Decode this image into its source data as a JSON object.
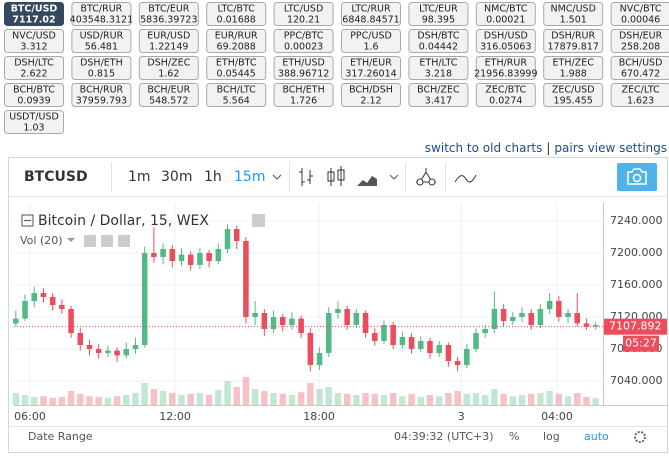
{
  "tickers": [
    {
      "pair": "BTC/USD",
      "price": "7117.02"
    },
    {
      "pair": "BTC/RUR",
      "price": "403548.3121"
    },
    {
      "pair": "BTC/EUR",
      "price": "5836.39723"
    },
    {
      "pair": "LTC/BTC",
      "price": "0.01688"
    },
    {
      "pair": "LTC/USD",
      "price": "120.21"
    },
    {
      "pair": "LTC/RUR",
      "price": "6848.84571"
    },
    {
      "pair": "LTC/EUR",
      "price": "98.395"
    },
    {
      "pair": "NMC/BTC",
      "price": "0.00021"
    },
    {
      "pair": "NMC/USD",
      "price": "1.501"
    },
    {
      "pair": "NVC/BTC",
      "price": "0.00046"
    },
    {
      "pair": "NVC/USD",
      "price": "3.312"
    },
    {
      "pair": "USD/RUR",
      "price": "56.481"
    },
    {
      "pair": "EUR/USD",
      "price": "1.22149"
    },
    {
      "pair": "EUR/RUR",
      "price": "69.2088"
    },
    {
      "pair": "PPC/BTC",
      "price": "0.00023"
    },
    {
      "pair": "PPC/USD",
      "price": "1.6"
    },
    {
      "pair": "DSH/BTC",
      "price": "0.04442"
    },
    {
      "pair": "DSH/USD",
      "price": "316.05063"
    },
    {
      "pair": "DSH/RUR",
      "price": "17879.817"
    },
    {
      "pair": "DSH/EUR",
      "price": "258.208"
    },
    {
      "pair": "DSH/LTC",
      "price": "2.622"
    },
    {
      "pair": "DSH/ETH",
      "price": "0.815"
    },
    {
      "pair": "DSH/ZEC",
      "price": "1.62"
    },
    {
      "pair": "ETH/BTC",
      "price": "0.05445"
    },
    {
      "pair": "ETH/USD",
      "price": "388.96712"
    },
    {
      "pair": "ETH/EUR",
      "price": "317.26014"
    },
    {
      "pair": "ETH/LTC",
      "price": "3.218"
    },
    {
      "pair": "ETH/RUR",
      "price": "21956.83999"
    },
    {
      "pair": "ETH/ZEC",
      "price": "1.988"
    },
    {
      "pair": "BCH/USD",
      "price": "670.472"
    },
    {
      "pair": "BCH/BTC",
      "price": "0.0939"
    },
    {
      "pair": "BCH/RUR",
      "price": "37959.793"
    },
    {
      "pair": "BCH/EUR",
      "price": "548.572"
    },
    {
      "pair": "BCH/LTC",
      "price": "5.564"
    },
    {
      "pair": "BCH/ETH",
      "price": "1.726"
    },
    {
      "pair": "BCH/DSH",
      "price": "2.12"
    },
    {
      "pair": "BCH/ZEC",
      "price": "3.417"
    },
    {
      "pair": "ZEC/BTC",
      "price": "0.0274"
    },
    {
      "pair": "ZEC/USD",
      "price": "195.455"
    },
    {
      "pair": "ZEC/LTC",
      "price": "1.623"
    },
    {
      "pair": "USDT/USD",
      "price": "1.03"
    }
  ],
  "links": [
    "switch to old charts",
    "|",
    "pairs view settings"
  ],
  "toolbar": {
    "symbol": "BTCUSD",
    "intervals": [
      "1m",
      "30m",
      "1h",
      "15m"
    ]
  },
  "legend": {
    "title": "Bitcoin / Dollar, 15, WEX",
    "volume": "Vol (20)"
  },
  "chart_data": {
    "type": "candlestick",
    "up_color": "#53b987",
    "down_color": "#eb4d5c",
    "xlim": [
      -0.2,
      63.8
    ],
    "xticks": [
      {
        "value": 1.54,
        "label": "06:00"
      },
      {
        "value": 17.3,
        "label": "12:00"
      },
      {
        "value": 32.95,
        "label": "18:00"
      },
      {
        "value": 48.4,
        "label": "3"
      },
      {
        "value": 58.8,
        "label": "04:00"
      }
    ],
    "ylim": [
      7010,
      7262.5
    ],
    "yticks": [
      {
        "value": 7040,
        "label": "7040.000"
      },
      {
        "value": 7080,
        "label": "7080.000"
      },
      {
        "value": 7120,
        "label": "7120.000"
      },
      {
        "value": 7160,
        "label": "7160.000"
      },
      {
        "value": 7200,
        "label": "7200.000"
      },
      {
        "value": 7240,
        "label": "7240.000"
      }
    ],
    "grid": true,
    "volume_lim": [
      0,
      100
    ],
    "candles": [
      [
        7112,
        7128,
        7108,
        7118
      ],
      [
        7118,
        7148,
        7115,
        7140
      ],
      [
        7140,
        7158,
        7132,
        7150
      ],
      [
        7150,
        7156,
        7138,
        7145
      ],
      [
        7145,
        7150,
        7128,
        7135
      ],
      [
        7135,
        7142,
        7124,
        7130
      ],
      [
        7130,
        7134,
        7094,
        7100
      ],
      [
        7100,
        7106,
        7078,
        7085
      ],
      [
        7085,
        7092,
        7072,
        7080
      ],
      [
        7080,
        7086,
        7068,
        7075
      ],
      [
        7075,
        7084,
        7070,
        7078
      ],
      [
        7078,
        7082,
        7064,
        7072
      ],
      [
        7072,
        7088,
        7068,
        7080
      ],
      [
        7080,
        7094,
        7074,
        7085
      ],
      [
        7085,
        7208,
        7082,
        7200
      ],
      [
        7200,
        7232,
        7188,
        7195
      ],
      [
        7195,
        7212,
        7186,
        7205
      ],
      [
        7205,
        7210,
        7182,
        7190
      ],
      [
        7190,
        7206,
        7184,
        7198
      ],
      [
        7198,
        7202,
        7178,
        7185
      ],
      [
        7185,
        7206,
        7180,
        7200
      ],
      [
        7200,
        7204,
        7182,
        7190
      ],
      [
        7190,
        7212,
        7186,
        7205
      ],
      [
        7205,
        7236,
        7200,
        7230
      ],
      [
        7230,
        7234,
        7205,
        7215
      ],
      [
        7215,
        7220,
        7112,
        7120
      ],
      [
        7120,
        7140,
        7110,
        7125
      ],
      [
        7125,
        7130,
        7096,
        7105
      ],
      [
        7105,
        7128,
        7100,
        7120
      ],
      [
        7120,
        7124,
        7102,
        7110
      ],
      [
        7110,
        7126,
        7104,
        7118
      ],
      [
        7118,
        7122,
        7094,
        7100
      ],
      [
        7100,
        7106,
        7052,
        7060
      ],
      [
        7060,
        7082,
        7054,
        7075
      ],
      [
        7075,
        7132,
        7070,
        7125
      ],
      [
        7125,
        7140,
        7118,
        7130
      ],
      [
        7130,
        7134,
        7104,
        7110
      ],
      [
        7110,
        7130,
        7106,
        7125
      ],
      [
        7125,
        7128,
        7094,
        7100
      ],
      [
        7100,
        7106,
        7084,
        7090
      ],
      [
        7090,
        7116,
        7086,
        7110
      ],
      [
        7110,
        7114,
        7080,
        7085
      ],
      [
        7085,
        7102,
        7080,
        7095
      ],
      [
        7095,
        7100,
        7074,
        7080
      ],
      [
        7080,
        7096,
        7076,
        7090
      ],
      [
        7090,
        7094,
        7068,
        7075
      ],
      [
        7075,
        7090,
        7070,
        7085
      ],
      [
        7085,
        7088,
        7058,
        7065
      ],
      [
        7065,
        7070,
        7052,
        7060
      ],
      [
        7060,
        7086,
        7056,
        7080
      ],
      [
        7080,
        7106,
        7076,
        7100
      ],
      [
        7100,
        7110,
        7094,
        7105
      ],
      [
        7105,
        7152,
        7100,
        7130
      ],
      [
        7130,
        7136,
        7108,
        7115
      ],
      [
        7115,
        7126,
        7110,
        7120
      ],
      [
        7120,
        7132,
        7114,
        7125
      ],
      [
        7125,
        7130,
        7104,
        7110
      ],
      [
        7110,
        7136,
        7106,
        7130
      ],
      [
        7130,
        7150,
        7124,
        7140
      ],
      [
        7140,
        7146,
        7114,
        7120
      ],
      [
        7120,
        7130,
        7112,
        7125
      ],
      [
        7125,
        7150,
        7108,
        7112
      ],
      [
        7112,
        7118,
        7104,
        7108
      ],
      [
        7108,
        7114,
        7104,
        7110
      ]
    ],
    "volumes": [
      30,
      25,
      20,
      22,
      18,
      20,
      35,
      28,
      22,
      20,
      18,
      22,
      25,
      30,
      55,
      40,
      35,
      30,
      25,
      28,
      30,
      25,
      38,
      60,
      45,
      70,
      40,
      35,
      30,
      28,
      25,
      32,
      55,
      40,
      45,
      30,
      28,
      25,
      30,
      28,
      25,
      30,
      22,
      28,
      20,
      25,
      22,
      30,
      35,
      28,
      30,
      25,
      40,
      28,
      22,
      25,
      28,
      30,
      35,
      28,
      22,
      30,
      20,
      18
    ],
    "last_price": {
      "value": 7107.892,
      "label": "7107.892"
    },
    "countdown": "05:27"
  },
  "status": {
    "date_range": "Date Range",
    "time": "04:39:32 (UTC+3)",
    "percent": "%",
    "log": "log",
    "auto": "auto"
  }
}
